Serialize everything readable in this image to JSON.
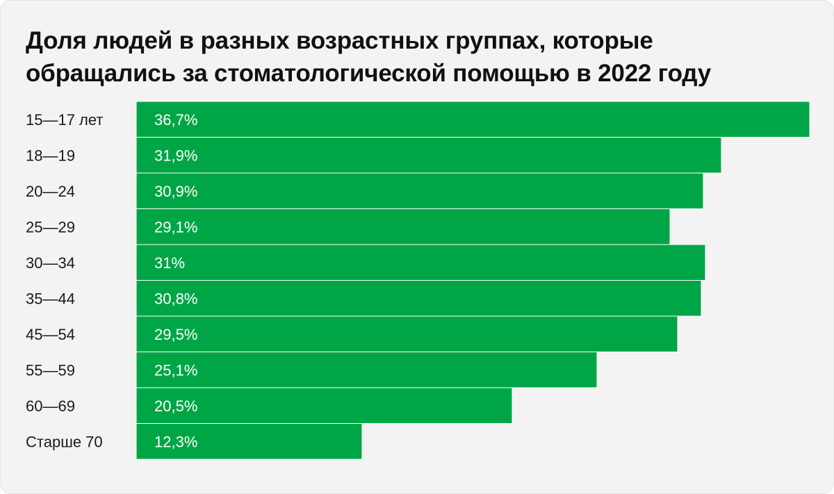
{
  "colors": {
    "bar": "#00a646",
    "bar_separator": "#ffffff",
    "background": "#f3f3f3",
    "text": "#111111"
  },
  "chart_data": {
    "type": "bar",
    "orientation": "horizontal",
    "title": "Доля людей в разных возрастных группах, которые обращались за стоматологической помощью в 2022 году",
    "xlabel": "",
    "ylabel": "",
    "unit": "%",
    "grid": false,
    "legend": "none",
    "categories": [
      "15—17 лет",
      "18—19",
      "20—24",
      "25—29",
      "30—34",
      "35—44",
      "45—54",
      "55—59",
      "60—69",
      "Старше 70"
    ],
    "values": [
      36.7,
      31.9,
      30.9,
      29.1,
      31,
      30.8,
      29.5,
      25.1,
      20.5,
      12.3
    ],
    "value_labels": [
      "36,7%",
      "31,9%",
      "30,9%",
      "29,1%",
      "31%",
      "30,8%",
      "29,5%",
      "25,1%",
      "20,5%",
      "12,3%"
    ],
    "xlim": [
      0,
      36.7
    ]
  }
}
